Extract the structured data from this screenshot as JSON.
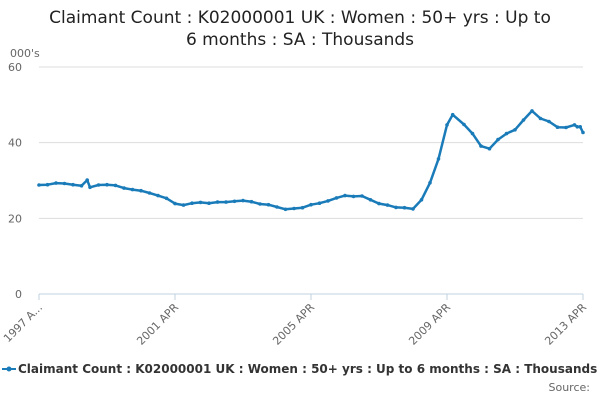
{
  "title_lines": [
    "Claimant Count : K02000001 UK : Women : 50+ yrs : Up to",
    "6 months : SA : Thousands"
  ],
  "y_unit_label": "000's",
  "legend": {
    "label": "Claimant Count : K02000001 UK : Women : 50+ yrs : Up to 6 months : SA : Thousands"
  },
  "source_label": "Source:",
  "colors": {
    "series": "#1a7bb9",
    "grid": "#dddddd",
    "axis": "#c0d0e0",
    "text": "#666666"
  },
  "chart_data": {
    "type": "line",
    "title": "Claimant Count : K02000001 UK : Women : 50+ yrs : Up to 6 months : SA : Thousands",
    "xlabel": "",
    "ylabel": "000's",
    "ylim": [
      0,
      60
    ],
    "yticks": [
      0,
      20,
      40,
      60
    ],
    "xticks": [
      {
        "label": "1997 A...",
        "t": 1997.25
      },
      {
        "label": "2001 APR",
        "t": 2001.25
      },
      {
        "label": "2005 APR",
        "t": 2005.25
      },
      {
        "label": "2009 APR",
        "t": 2009.25
      },
      {
        "label": "2013 APR",
        "t": 2013.25
      }
    ],
    "x_range": [
      "1997 APR",
      "2013 APR"
    ],
    "grid": true,
    "legend_position": "bottom",
    "series": [
      {
        "name": "Claimant Count : K02000001 UK : Women : 50+ yrs : Up to 6 months : SA : Thousands",
        "points": [
          {
            "x": "1997 APR",
            "y": 28.8
          },
          {
            "x": "1997 JUL",
            "y": 28.9
          },
          {
            "x": "1997 OCT",
            "y": 29.3
          },
          {
            "x": "1998 JAN",
            "y": 29.2
          },
          {
            "x": "1998 APR",
            "y": 28.9
          },
          {
            "x": "1998 JUL",
            "y": 28.6
          },
          {
            "x": "1998 SEP",
            "y": 30.1
          },
          {
            "x": "1998 OCT",
            "y": 28.2
          },
          {
            "x": "1999 JAN",
            "y": 28.8
          },
          {
            "x": "1999 APR",
            "y": 28.9
          },
          {
            "x": "1999 JUL",
            "y": 28.7
          },
          {
            "x": "1999 OCT",
            "y": 28.0
          },
          {
            "x": "2000 JAN",
            "y": 27.6
          },
          {
            "x": "2000 APR",
            "y": 27.3
          },
          {
            "x": "2000 JUL",
            "y": 26.7
          },
          {
            "x": "2000 OCT",
            "y": 26.0
          },
          {
            "x": "2001 JAN",
            "y": 25.3
          },
          {
            "x": "2001 APR",
            "y": 23.9
          },
          {
            "x": "2001 JUL",
            "y": 23.5
          },
          {
            "x": "2001 OCT",
            "y": 24.0
          },
          {
            "x": "2002 JAN",
            "y": 24.2
          },
          {
            "x": "2002 APR",
            "y": 24.0
          },
          {
            "x": "2002 JUL",
            "y": 24.3
          },
          {
            "x": "2002 OCT",
            "y": 24.3
          },
          {
            "x": "2003 JAN",
            "y": 24.5
          },
          {
            "x": "2003 APR",
            "y": 24.7
          },
          {
            "x": "2003 JUL",
            "y": 24.4
          },
          {
            "x": "2003 OCT",
            "y": 23.8
          },
          {
            "x": "2004 JAN",
            "y": 23.6
          },
          {
            "x": "2004 APR",
            "y": 23.0
          },
          {
            "x": "2004 JUL",
            "y": 22.4
          },
          {
            "x": "2004 OCT",
            "y": 22.6
          },
          {
            "x": "2005 JAN",
            "y": 22.8
          },
          {
            "x": "2005 APR",
            "y": 23.6
          },
          {
            "x": "2005 JUL",
            "y": 24.0
          },
          {
            "x": "2005 OCT",
            "y": 24.6
          },
          {
            "x": "2006 JAN",
            "y": 25.4
          },
          {
            "x": "2006 APR",
            "y": 26.0
          },
          {
            "x": "2006 JUL",
            "y": 25.8
          },
          {
            "x": "2006 OCT",
            "y": 25.9
          },
          {
            "x": "2007 JAN",
            "y": 24.9
          },
          {
            "x": "2007 APR",
            "y": 23.9
          },
          {
            "x": "2007 JUL",
            "y": 23.5
          },
          {
            "x": "2007 OCT",
            "y": 22.9
          },
          {
            "x": "2008 JAN",
            "y": 22.8
          },
          {
            "x": "2008 APR",
            "y": 22.5
          },
          {
            "x": "2008 JUL",
            "y": 24.9
          },
          {
            "x": "2008 OCT",
            "y": 29.4
          },
          {
            "x": "2009 JAN",
            "y": 35.7
          },
          {
            "x": "2009 APR",
            "y": 44.7
          },
          {
            "x": "2009 JUN",
            "y": 47.4
          },
          {
            "x": "2009 OCT",
            "y": 44.8
          },
          {
            "x": "2010 JAN",
            "y": 42.4
          },
          {
            "x": "2010 APR",
            "y": 39.1
          },
          {
            "x": "2010 JUL",
            "y": 38.4
          },
          {
            "x": "2010 OCT",
            "y": 40.8
          },
          {
            "x": "2011 JAN",
            "y": 42.4
          },
          {
            "x": "2011 APR",
            "y": 43.4
          },
          {
            "x": "2011 JUL",
            "y": 46.0
          },
          {
            "x": "2011 OCT",
            "y": 48.4
          },
          {
            "x": "2012 JAN",
            "y": 46.4
          },
          {
            "x": "2012 APR",
            "y": 45.6
          },
          {
            "x": "2012 JUL",
            "y": 44.1
          },
          {
            "x": "2012 OCT",
            "y": 44.0
          },
          {
            "x": "2013 JAN",
            "y": 44.7
          },
          {
            "x": "2013 FEB",
            "y": 44.2
          },
          {
            "x": "2013 MAR",
            "y": 44.2
          },
          {
            "x": "2013 APR",
            "y": 42.7
          }
        ]
      }
    ]
  }
}
